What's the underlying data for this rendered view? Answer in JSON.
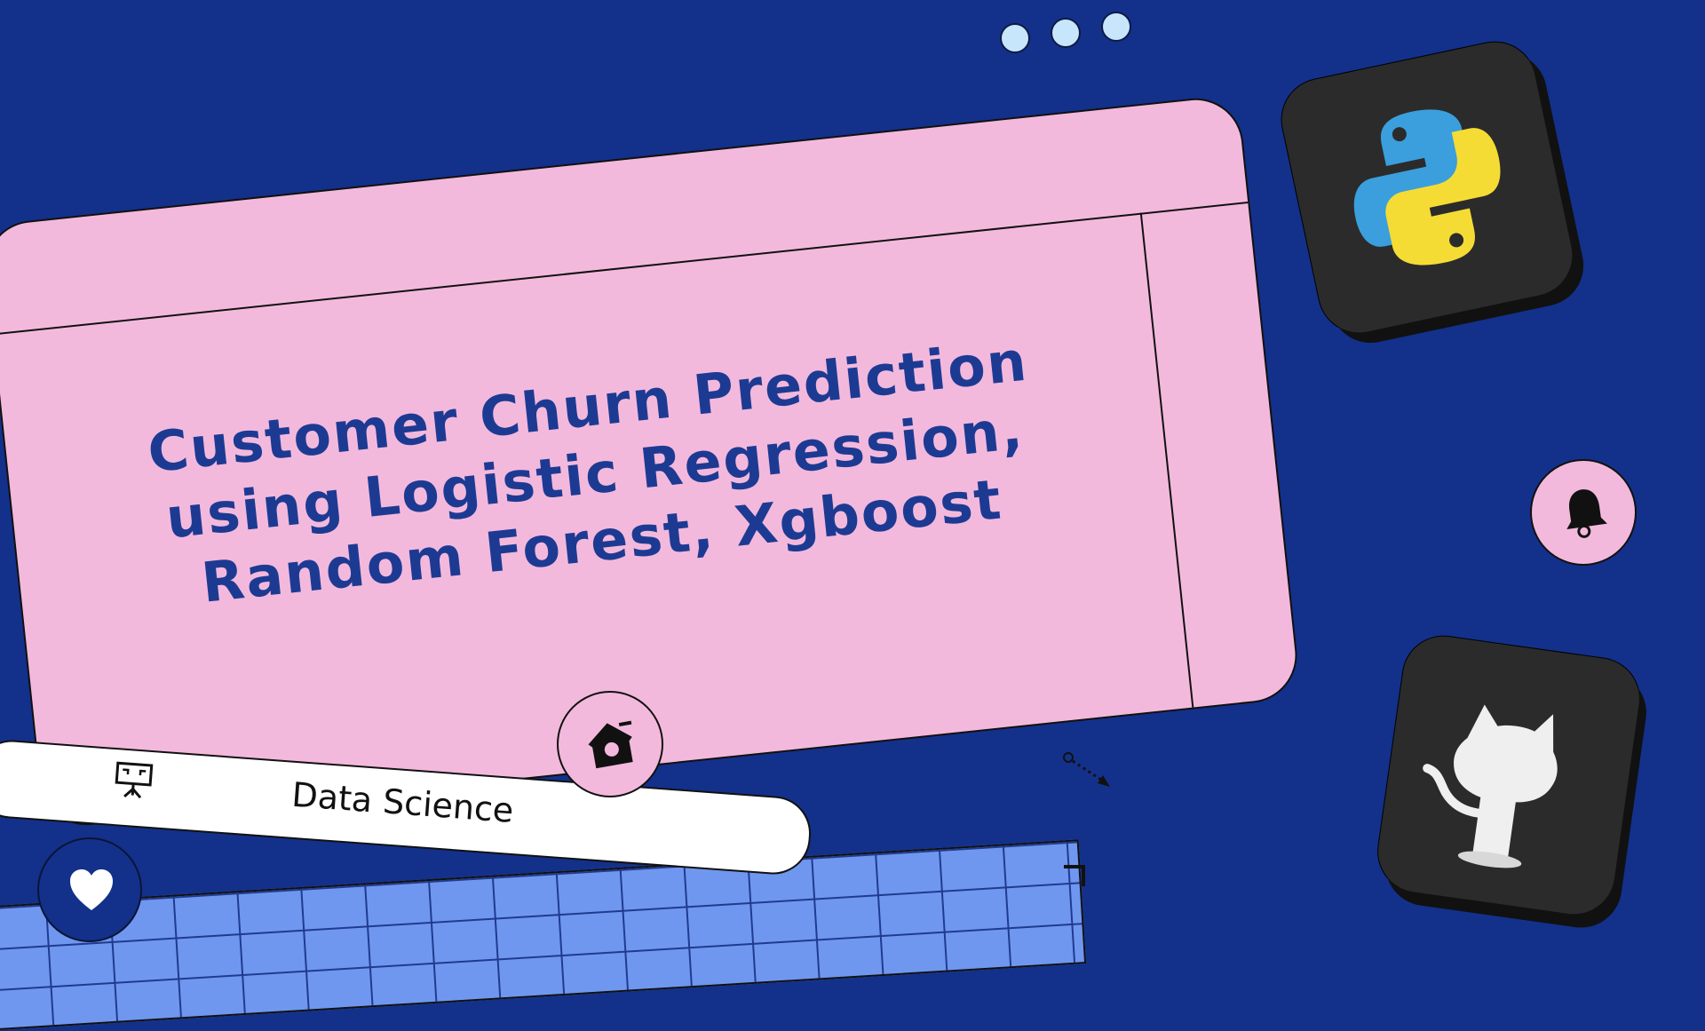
{
  "slide": {
    "title_lines": [
      "Customer Churn Prediction",
      "using Logistic Regression,",
      "Random Forest, Xgboost"
    ],
    "tag_label": "Data Science"
  },
  "icons": {
    "window_dots": [
      "window-dot",
      "window-dot",
      "window-dot"
    ],
    "tag_icon": "presentation-board-icon",
    "home_badge": "birdhouse-icon",
    "heart_badge": "heart-icon",
    "bell_badge": "bell-icon",
    "python_tile": "python-logo-icon",
    "github_tile": "github-octocat-icon",
    "cursor": "dotted-arrow-icon"
  },
  "colors": {
    "background": "#13318b",
    "card": "#f3b9dc",
    "title": "#1d3a93",
    "grid": "#6f97ef",
    "dots": "#c7e6fb"
  }
}
